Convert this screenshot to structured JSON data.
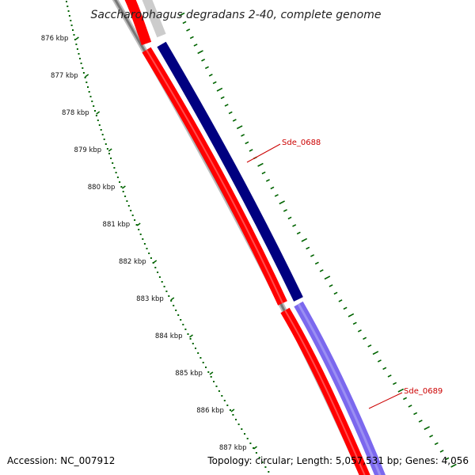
{
  "title": "Saccharophagus degradans 2-40, complete genome",
  "accession_label": "Accession: NC_007912",
  "summary_label": "Topology: circular; Length: 5,057,531 bp; Genes: 4,056",
  "scale": {
    "tick_labels": [
      "876 kbp",
      "877 kbp",
      "878 kbp",
      "879 kbp",
      "880 kbp",
      "881 kbp",
      "882 kbp",
      "883 kbp",
      "884 kbp",
      "885 kbp",
      "886 kbp",
      "887 kbp"
    ],
    "tick_color": "#006400"
  },
  "genes": [
    {
      "name": "Sde_0688",
      "strand": "forward",
      "color": "#000080"
    },
    {
      "name": "Sde_0689",
      "strand": "forward",
      "color": "#7b68ee"
    }
  ],
  "colors": {
    "cds_reverse": "#ff0000",
    "backbone": "#808080",
    "label": "#cc0000"
  }
}
